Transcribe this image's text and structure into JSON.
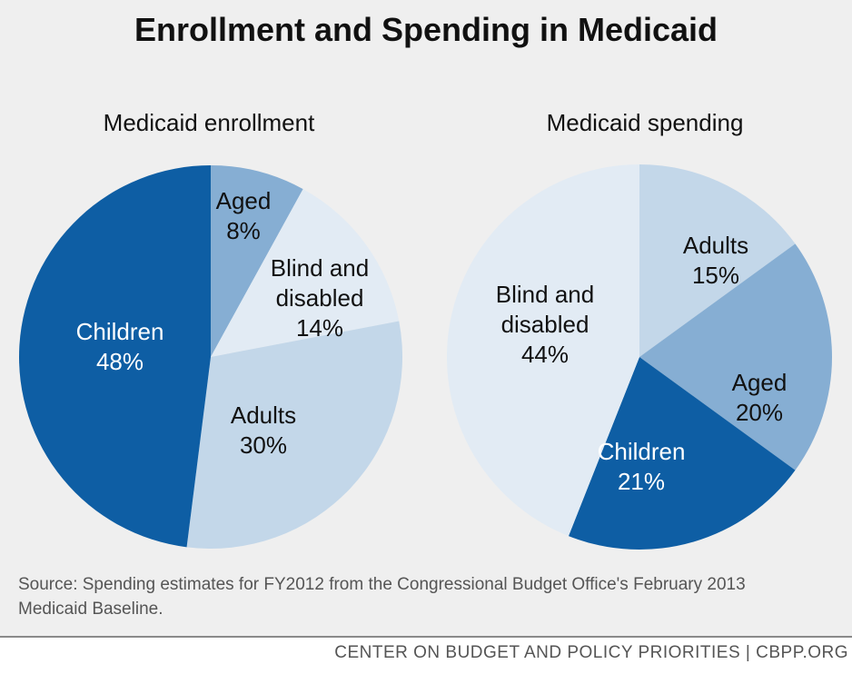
{
  "title": "Enrollment and Spending in Medicaid",
  "source_text": "Source: Spending estimates for FY2012 from the Congressional Budget Office's February 2013 Medicaid Baseline.",
  "footer_text": "CENTER ON BUDGET AND POLICY PRIORITIES | CBPP.ORG",
  "chart_data": [
    {
      "type": "pie",
      "title": "Medicaid enrollment",
      "slices": [
        {
          "label": "Aged",
          "value": 8,
          "value_label": "8%",
          "color": "#86aed3",
          "text_color": "#111111"
        },
        {
          "label": "Blind and disabled",
          "value": 14,
          "value_label": "14%",
          "color": "#e2ebf4",
          "text_color": "#111111"
        },
        {
          "label": "Adults",
          "value": 30,
          "value_label": "30%",
          "color": "#c3d7e9",
          "text_color": "#111111"
        },
        {
          "label": "Children",
          "value": 48,
          "value_label": "48%",
          "color": "#0e5ea4",
          "text_color": "#ffffff"
        }
      ]
    },
    {
      "type": "pie",
      "title": "Medicaid spending",
      "slices": [
        {
          "label": "Adults",
          "value": 15,
          "value_label": "15%",
          "color": "#c3d7e9",
          "text_color": "#111111"
        },
        {
          "label": "Aged",
          "value": 20,
          "value_label": "20%",
          "color": "#86aed3",
          "text_color": "#111111"
        },
        {
          "label": "Children",
          "value": 21,
          "value_label": "21%",
          "color": "#0e5ea4",
          "text_color": "#ffffff"
        },
        {
          "label": "Blind and disabled",
          "value": 44,
          "value_label": "44%",
          "color": "#e2ebf4",
          "text_color": "#111111"
        }
      ]
    }
  ]
}
